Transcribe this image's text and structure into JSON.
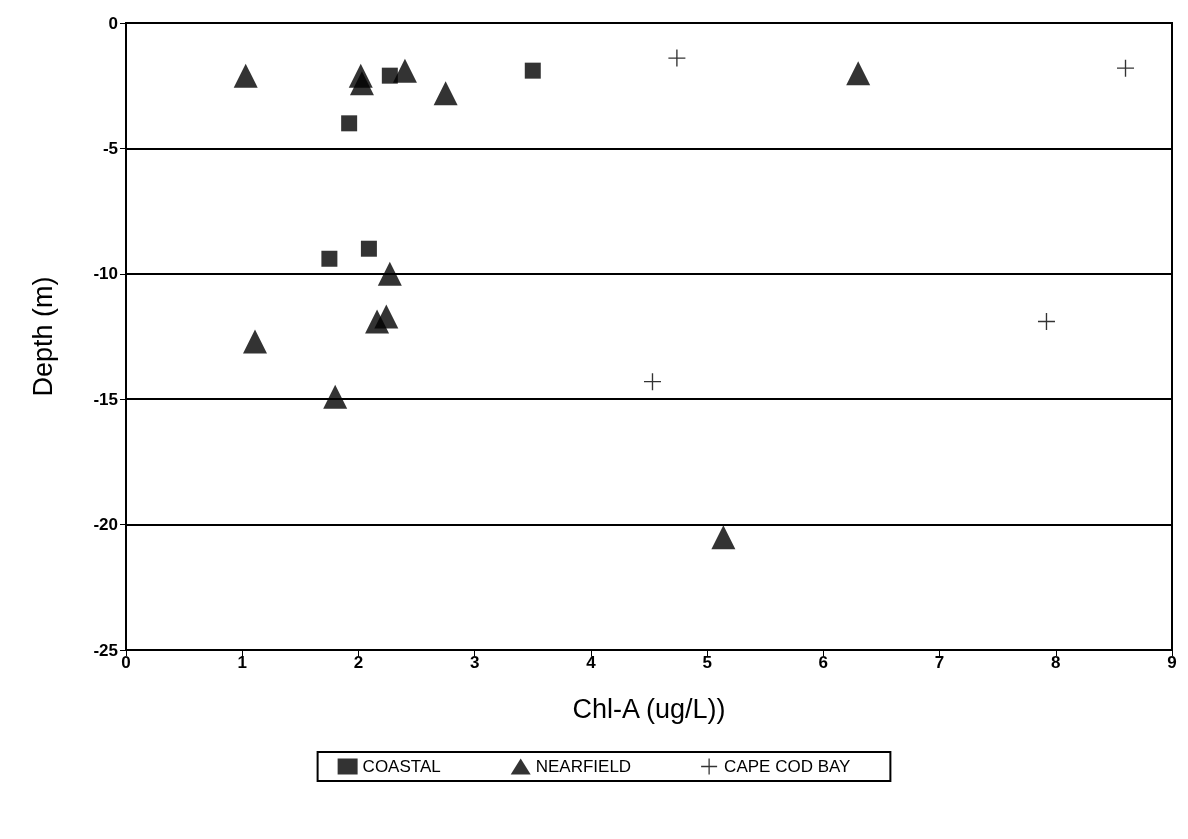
{
  "chart_data": {
    "type": "scatter",
    "xlabel": "Chl-A (ug/L))",
    "ylabel": "Depth (m)",
    "xlim": [
      0,
      9
    ],
    "xticks": [
      0,
      1,
      2,
      3,
      4,
      5,
      6,
      7,
      8,
      9
    ],
    "ylim": [
      -25,
      0
    ],
    "yticks": [
      -25,
      -20,
      -15,
      -10,
      -5,
      0
    ],
    "grid": "y",
    "legend": "bottom",
    "series": [
      {
        "name": "COASTAL",
        "color": "#000000",
        "marker": "square",
        "x": [
          1.92,
          2.27,
          3.5,
          1.75,
          2.09
        ],
        "values": [
          -4.0,
          -2.1,
          -1.9,
          -9.4,
          -9.0
        ]
      },
      {
        "name": "NEARFIELD",
        "color": "#000000",
        "marker": "triangle",
        "x": [
          1.03,
          2.02,
          2.03,
          2.4,
          2.75,
          6.3,
          2.27,
          2.16,
          2.24,
          1.11,
          1.8,
          5.14
        ],
        "values": [
          -2.1,
          -2.1,
          -2.4,
          -1.9,
          -2.8,
          -2.0,
          -10.0,
          -11.9,
          -11.7,
          -12.7,
          -14.9,
          -20.5
        ]
      },
      {
        "name": "CAPE COD BAY",
        "color": "#000000",
        "marker": "cross",
        "x": [
          4.74,
          8.6,
          4.53,
          7.92
        ],
        "values": [
          -1.4,
          -1.8,
          -14.3,
          -11.9
        ]
      }
    ]
  }
}
